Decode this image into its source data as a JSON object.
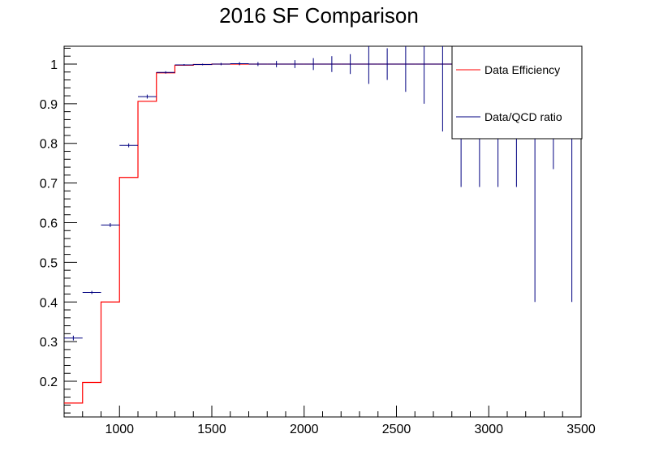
{
  "chart_data": {
    "type": "line",
    "title": "2016 SF Comparison",
    "xlabel": "",
    "ylabel": "",
    "xlim": [
      700,
      3500
    ],
    "ylim": [
      0.11,
      1.045
    ],
    "x_ticks": [
      1000,
      1500,
      2000,
      2500,
      3000,
      3500
    ],
    "x_tick_labels": [
      "1000",
      "1500",
      "2000",
      "2500",
      "3000",
      "3500"
    ],
    "y_ticks": [
      0.2,
      0.3,
      0.4,
      0.5,
      0.6,
      0.7,
      0.8,
      0.9,
      1.0
    ],
    "y_tick_labels": [
      "0.2",
      "0.3",
      "0.4",
      "0.5",
      "0.6",
      "0.7",
      "0.8",
      "0.9",
      "1"
    ],
    "grid": false,
    "legend": {
      "position": "top-right",
      "entries": [
        {
          "label": "Data Efficiency",
          "color": "#ff0000"
        },
        {
          "label": "Data/QCD ratio",
          "color": "#000080"
        }
      ]
    },
    "series": [
      {
        "name": "Data Efficiency",
        "style": "step",
        "color": "#ff0000",
        "bin_edges": [
          700,
          800,
          900,
          1000,
          1100,
          1200,
          1300,
          1400,
          1500,
          1600,
          1700,
          1800,
          1900,
          2000,
          2100,
          2200,
          2300,
          2400,
          2500,
          2600,
          2700,
          2800,
          2900
        ],
        "values": [
          0.145,
          0.197,
          0.4,
          0.714,
          0.906,
          0.978,
          0.997,
          0.999,
          1.0,
          1.0,
          1.0,
          1.0,
          1.0,
          1.0,
          1.0,
          1.0,
          1.0,
          1.0,
          1.0,
          1.0,
          1.0,
          1.0
        ]
      },
      {
        "name": "Data/QCD ratio",
        "style": "errorbar",
        "color": "#000080",
        "x": [
          750,
          850,
          950,
          1050,
          1150,
          1250,
          1350,
          1450,
          1550,
          1650,
          1750,
          1850,
          1950,
          2050,
          2150,
          2250,
          2350,
          2450,
          2550,
          2650,
          2750,
          2850,
          2950,
          3050,
          3150,
          3250,
          3350,
          3450
        ],
        "xerr": 50,
        "y": [
          0.309,
          0.424,
          0.594,
          0.795,
          0.918,
          0.979,
          0.998,
          0.999,
          1.0,
          1.001,
          1.0,
          1.0,
          1.0,
          1.0,
          1.0,
          1.0,
          1.0,
          1.0,
          1.0,
          1.0,
          1.0,
          1.0,
          1.0,
          1.0,
          1.0,
          1.0,
          1.0,
          1.0
        ],
        "yerr": [
          0.006,
          0.004,
          0.005,
          0.005,
          0.005,
          0.003,
          0.002,
          0.002,
          0.003,
          0.004,
          0.005,
          0.008,
          0.01,
          0.015,
          0.02,
          0.025,
          0.05,
          0.04,
          0.07,
          0.1,
          0.17,
          0.31,
          0.31,
          0.31,
          0.31,
          0.6,
          0.265,
          0.6
        ]
      }
    ]
  }
}
